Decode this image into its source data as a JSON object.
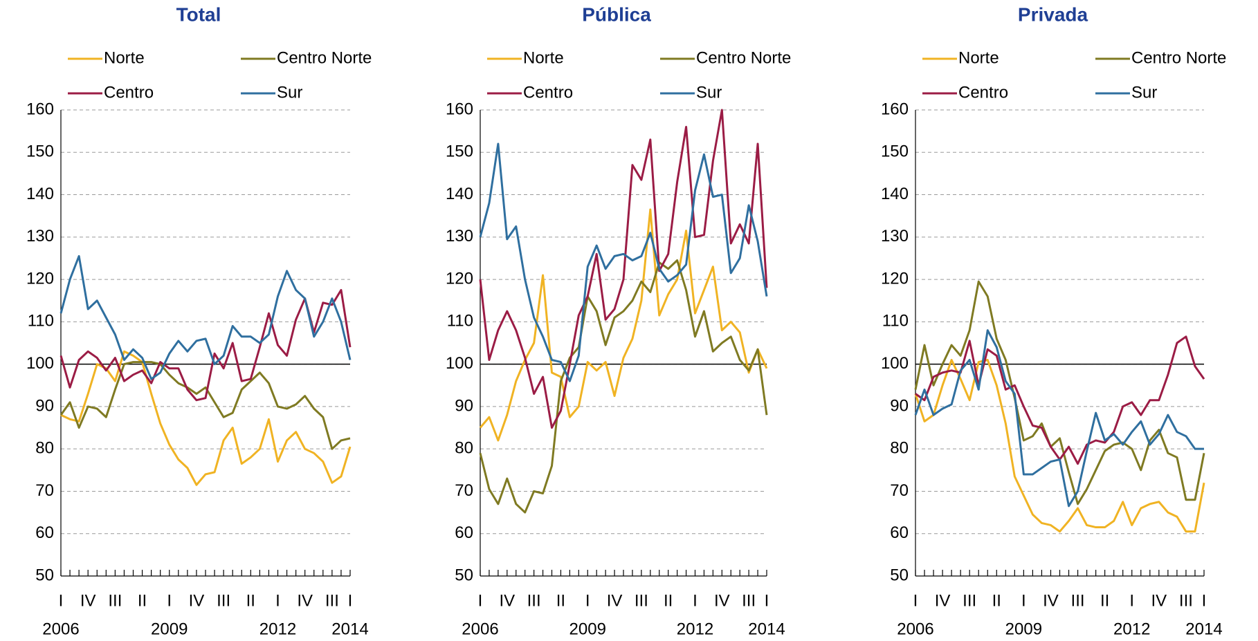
{
  "chart_data": [
    {
      "type": "line",
      "title": "Total",
      "categories": [
        "I",
        null,
        null,
        "IV",
        null,
        null,
        "III",
        null,
        null,
        "II",
        null,
        null,
        "I",
        null,
        null,
        "IV",
        null,
        null,
        "III",
        null,
        null,
        "II",
        null,
        null,
        "I",
        null,
        null,
        "IV",
        null,
        null,
        "III",
        null,
        "I"
      ],
      "years": [
        "2006",
        null,
        null,
        null,
        null,
        null,
        null,
        null,
        null,
        null,
        null,
        null,
        "2009",
        null,
        null,
        null,
        null,
        null,
        null,
        null,
        null,
        null,
        null,
        null,
        "2012",
        null,
        null,
        null,
        null,
        null,
        null,
        null,
        "2014"
      ],
      "ylim": [
        50,
        160
      ],
      "yticks": [
        50,
        60,
        70,
        80,
        90,
        100,
        110,
        120,
        130,
        140,
        150,
        160
      ],
      "grid": true,
      "reference_line": 100,
      "series": [
        {
          "name": "Norte",
          "color": "#f0b323",
          "values": [
            88,
            87,
            86.5,
            93,
            100,
            99,
            96,
            103,
            102,
            100.5,
            93,
            86,
            81,
            77.5,
            75.5,
            71.5,
            74,
            74.5,
            82,
            85,
            76.5,
            78,
            80,
            87,
            77,
            82,
            84,
            80,
            79,
            77,
            72,
            73.5,
            80.5
          ]
        },
        {
          "name": "Centro Norte",
          "color": "#7f7a22",
          "values": [
            88,
            91,
            85,
            90,
            89.5,
            87.5,
            94,
            100,
            100.5,
            100.5,
            100.5,
            100,
            97.5,
            95.5,
            94.5,
            93,
            94.5,
            91,
            87.5,
            88.5,
            94,
            96,
            98,
            95.5,
            90,
            89.5,
            90.5,
            92.5,
            89.5,
            87.5,
            80,
            82,
            82.5
          ]
        },
        {
          "name": "Centro",
          "color": "#9b1c45",
          "values": [
            102,
            94.5,
            101,
            103,
            101.5,
            98.5,
            101.5,
            96,
            97.5,
            98.5,
            95.5,
            100.5,
            99,
            99,
            94,
            91.5,
            92,
            102.5,
            99,
            105,
            96,
            96.5,
            104,
            112,
            104.5,
            102,
            110.5,
            115.5,
            107.5,
            114.5,
            114,
            117.5,
            104
          ]
        },
        {
          "name": "Sur",
          "color": "#2f6f9f",
          "values": [
            112,
            120,
            125.5,
            113,
            115,
            111,
            107,
            101,
            103.5,
            101.5,
            96.5,
            98,
            102.5,
            105.5,
            103,
            105.5,
            106,
            100,
            102,
            109,
            106.5,
            106.5,
            105,
            107,
            116,
            122,
            117.5,
            115.5,
            106.5,
            110,
            115.5,
            110,
            101
          ]
        }
      ]
    },
    {
      "type": "line",
      "title": "Pública",
      "categories": [
        "I",
        null,
        null,
        "IV",
        null,
        null,
        "III",
        null,
        null,
        "II",
        null,
        null,
        "I",
        null,
        null,
        "IV",
        null,
        null,
        "III",
        null,
        null,
        "II",
        null,
        null,
        "I",
        null,
        null,
        "IV",
        null,
        null,
        "III",
        null,
        "I"
      ],
      "years": [
        "2006",
        null,
        null,
        null,
        null,
        null,
        null,
        null,
        null,
        null,
        null,
        null,
        "2009",
        null,
        null,
        null,
        null,
        null,
        null,
        null,
        null,
        null,
        null,
        null,
        "2012",
        null,
        null,
        null,
        null,
        null,
        null,
        null,
        "2014"
      ],
      "ylim": [
        50,
        160
      ],
      "yticks": [
        50,
        60,
        70,
        80,
        90,
        100,
        110,
        120,
        130,
        140,
        150,
        160
      ],
      "grid": true,
      "reference_line": 100,
      "series": [
        {
          "name": "Norte",
          "color": "#f0b323",
          "values": [
            85,
            87.5,
            82,
            88,
            96,
            101,
            105,
            121,
            98,
            97,
            87.5,
            90,
            100.5,
            98.5,
            100.5,
            92.5,
            101.5,
            106,
            115,
            136.5,
            111.5,
            116.5,
            120,
            131.5,
            112,
            117.5,
            123,
            108,
            110,
            107.5,
            98,
            103.5,
            99
          ]
        },
        {
          "name": "Centro Norte",
          "color": "#7f7a22",
          "values": [
            79,
            70.5,
            67,
            73,
            67,
            65,
            70,
            69.5,
            76,
            96,
            101.5,
            104,
            116,
            112.5,
            104.5,
            111,
            112.5,
            115,
            119.5,
            117,
            124,
            122.5,
            124.5,
            117.5,
            106.5,
            112.5,
            103,
            105,
            106.5,
            101,
            98.5,
            103.5,
            88
          ]
        },
        {
          "name": "Centro",
          "color": "#9b1c45",
          "values": [
            120,
            101,
            108,
            112.5,
            108,
            101.5,
            93,
            97,
            85,
            89,
            100,
            111.5,
            116,
            126,
            110.5,
            113,
            120,
            147,
            143.5,
            153,
            122,
            126,
            143,
            156,
            130,
            130.5,
            148,
            160,
            128.5,
            133,
            128.5,
            152,
            118
          ]
        },
        {
          "name": "Sur",
          "color": "#2f6f9f",
          "values": [
            130,
            138,
            152,
            129.5,
            132.5,
            120,
            111,
            106.5,
            101,
            100.5,
            96,
            102,
            123,
            128,
            122.5,
            125.5,
            126,
            124.5,
            125.5,
            131,
            122.5,
            119.5,
            121,
            123.5,
            141,
            149.5,
            139.5,
            140,
            121.5,
            125,
            137.5,
            129,
            116
          ]
        }
      ]
    },
    {
      "type": "line",
      "title": "Privada",
      "categories": [
        "I",
        null,
        null,
        "IV",
        null,
        null,
        "III",
        null,
        null,
        "II",
        null,
        null,
        "I",
        null,
        null,
        "IV",
        null,
        null,
        "III",
        null,
        null,
        "II",
        null,
        null,
        "I",
        null,
        null,
        "IV",
        null,
        null,
        "III",
        null,
        "I"
      ],
      "years": [
        "2006",
        null,
        null,
        null,
        null,
        null,
        null,
        null,
        null,
        null,
        null,
        null,
        "2009",
        null,
        null,
        null,
        null,
        null,
        null,
        null,
        null,
        null,
        null,
        null,
        "2012",
        null,
        null,
        null,
        null,
        null,
        null,
        null,
        "2014"
      ],
      "ylim": [
        50,
        160
      ],
      "yticks": [
        50,
        60,
        70,
        80,
        90,
        100,
        110,
        120,
        130,
        140,
        150,
        160
      ],
      "grid": true,
      "reference_line": 100,
      "series": [
        {
          "name": "Norte",
          "color": "#f0b323",
          "values": [
            93,
            86.5,
            88,
            95,
            101,
            96.5,
            91.5,
            100.5,
            101,
            95,
            86,
            73.5,
            69,
            64.5,
            62.5,
            62,
            60.5,
            63,
            66,
            62,
            61.5,
            61.5,
            63,
            67.5,
            62,
            66,
            67,
            67.5,
            65,
            64,
            60.5,
            60.5,
            72
          ]
        },
        {
          "name": "Centro Norte",
          "color": "#7f7a22",
          "values": [
            94,
            104.5,
            95,
            100,
            104.5,
            102,
            108,
            119.5,
            116,
            106,
            101,
            92,
            82,
            83,
            86,
            80.5,
            82.5,
            74.5,
            67,
            70.5,
            75,
            79.5,
            81,
            81.5,
            80,
            75,
            82,
            84.5,
            79,
            78,
            68,
            68,
            79
          ]
        },
        {
          "name": "Centro",
          "color": "#9b1c45",
          "values": [
            93,
            91.5,
            97,
            98,
            98.5,
            98,
            105.5,
            95,
            103.5,
            102,
            94,
            95,
            90,
            85.5,
            85,
            80.5,
            77.5,
            80.5,
            76.5,
            81,
            82,
            81.5,
            84,
            90,
            91,
            88,
            91.5,
            91.5,
            97.5,
            105,
            106.5,
            99.5,
            96.5
          ]
        },
        {
          "name": "Sur",
          "color": "#2f6f9f",
          "values": [
            88,
            94,
            88,
            89.5,
            90.5,
            98.5,
            101,
            94,
            108,
            104,
            96,
            93,
            74,
            74,
            75.5,
            77,
            77.5,
            66.5,
            70,
            79.5,
            88.5,
            82,
            83.5,
            81,
            84,
            86.5,
            81,
            83.5,
            88,
            84,
            83,
            80,
            80
          ]
        }
      ]
    }
  ]
}
